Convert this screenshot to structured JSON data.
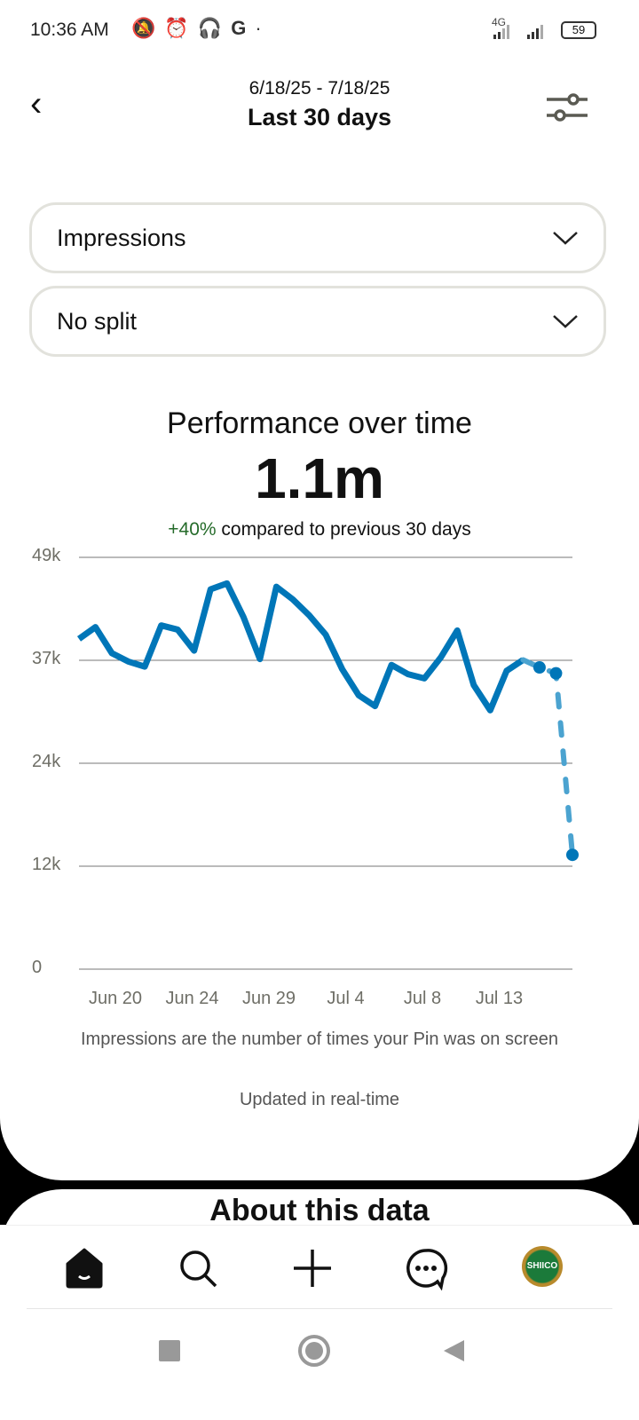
{
  "status_bar": {
    "time": "10:36 AM",
    "icons": [
      "muted-bell-icon",
      "alarm-icon",
      "headphones-icon",
      "google-icon",
      "dot-icon"
    ],
    "network": "4G",
    "battery": "59"
  },
  "header": {
    "date_range": "6/18/25 - 7/18/25",
    "period": "Last 30 days"
  },
  "filters": {
    "metric": "Impressions",
    "split": "No split"
  },
  "summary": {
    "title": "Performance over time",
    "value": "1.1m",
    "change": "+40%",
    "change_text": "compared to previous 30 days",
    "change_color": "#256b2a"
  },
  "chart_data": {
    "type": "line",
    "line_color": "#0076b8",
    "estimated_color": "#4ba3d0",
    "ylim": [
      0,
      49000
    ],
    "y_ticks": [
      "0",
      "12k",
      "24k",
      "37k",
      "49k"
    ],
    "y_tick_values": [
      0,
      12250,
      24500,
      36750,
      49000
    ],
    "x_tick_labels": [
      "Jun 20",
      "Jun 24",
      "Jun 29",
      "Jul 4",
      "Jul 8",
      "Jul 13"
    ],
    "grid": true,
    "series": [
      {
        "values": [
          39300,
          40700,
          37600,
          36600,
          36000,
          40900,
          40400,
          37900,
          45200,
          45900,
          41900,
          36900,
          45500,
          44000,
          42100,
          39800,
          35700,
          32600,
          31300,
          36200,
          35100,
          34600,
          37100,
          40300,
          33800,
          30800,
          35500,
          36800,
          35900,
          35200,
          13600
        ]
      }
    ],
    "estimated_from_index": 28
  },
  "footnote": "Impressions are the number of times your Pin was on screen",
  "updated": "Updated in real-time",
  "about": "About this data",
  "nav": {
    "items": [
      "home-icon",
      "search-icon",
      "create-icon",
      "messages-icon",
      "profile-avatar"
    ],
    "avatar_text": "SHIICO"
  }
}
